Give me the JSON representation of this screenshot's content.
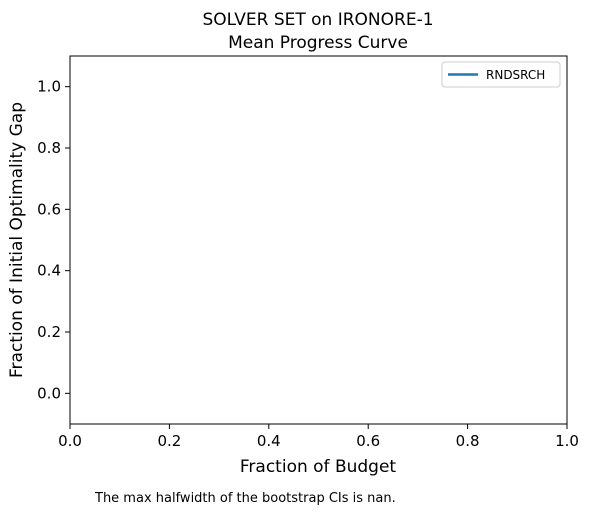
{
  "chart_data": {
    "type": "line",
    "title_line1": "SOLVER SET on IRONORE-1",
    "title_line2": "Mean Progress Curve",
    "xlabel": "Fraction of Budget",
    "ylabel": "Fraction of Initial Optimality Gap",
    "xlim": [
      0.0,
      1.0
    ],
    "ylim": [
      -0.1,
      1.1
    ],
    "xticks": [
      0.0,
      0.2,
      0.4,
      0.6,
      0.8,
      1.0
    ],
    "yticks": [
      0.0,
      0.2,
      0.4,
      0.6,
      0.8,
      1.0
    ],
    "xtick_labels": [
      "0.0",
      "0.2",
      "0.4",
      "0.6",
      "0.8",
      "1.0"
    ],
    "ytick_labels": [
      "0.0",
      "0.2",
      "0.4",
      "0.6",
      "0.8",
      "1.0"
    ],
    "grid": false,
    "legend_position": "top-right",
    "series": [
      {
        "name": "RNDSRCH",
        "color": "#1f77b4",
        "x": [],
        "y": []
      }
    ],
    "note": "The max halfwidth of the bootstrap CIs is nan."
  }
}
